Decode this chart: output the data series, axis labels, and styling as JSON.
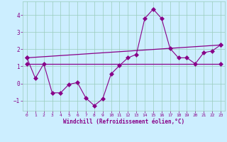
{
  "xlabel": "Windchill (Refroidissement éolien,°C)",
  "bg_color": "#cceeff",
  "grid_color": "#99ccbb",
  "line_color": "#880088",
  "xlim": [
    -0.5,
    23.5
  ],
  "ylim": [
    -1.6,
    4.8
  ],
  "xticks": [
    0,
    1,
    2,
    3,
    4,
    5,
    6,
    7,
    8,
    9,
    10,
    11,
    12,
    13,
    14,
    15,
    16,
    17,
    18,
    19,
    20,
    21,
    22,
    23
  ],
  "yticks": [
    -1,
    0,
    1,
    2,
    3,
    4
  ],
  "line1_x": [
    0,
    1,
    2,
    3,
    4,
    5,
    6,
    7,
    8,
    9,
    10,
    11,
    12,
    13,
    14,
    15,
    16,
    17,
    18,
    19,
    20,
    21,
    22,
    23
  ],
  "line1_y": [
    1.5,
    0.3,
    1.15,
    -0.55,
    -0.55,
    -0.05,
    0.05,
    -0.85,
    -1.3,
    -0.9,
    0.55,
    1.05,
    1.5,
    1.7,
    3.8,
    4.35,
    3.8,
    2.05,
    1.5,
    1.5,
    1.15,
    1.8,
    1.9,
    2.25
  ],
  "line2_x": [
    0,
    23
  ],
  "line2_y": [
    1.5,
    2.25
  ],
  "line3_x": [
    0,
    23
  ],
  "line3_y": [
    1.15,
    1.15
  ]
}
